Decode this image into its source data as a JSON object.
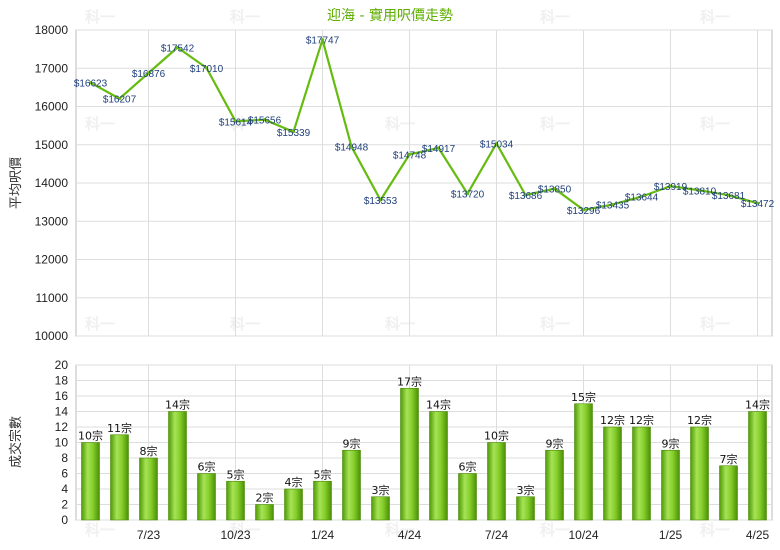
{
  "chart_data": [
    {
      "type": "line",
      "title": "迎海 - 實用呎價走勢",
      "ylabel": "平均呎價",
      "ylim": [
        10000,
        18000
      ],
      "yticks": [
        "10000",
        "11000",
        "12000",
        "13000",
        "14000",
        "15000",
        "16000",
        "17000",
        "18000"
      ],
      "xticks": [
        "7/23",
        "10/23",
        "1/24",
        "4/24",
        "7/24",
        "10/24",
        "1/25",
        "4/25"
      ],
      "grid": true,
      "color": "#66bb11",
      "values": [
        16623,
        16207,
        16876,
        17542,
        17010,
        15614,
        15656,
        15339,
        17747,
        14948,
        13553,
        14748,
        14917,
        13720,
        15034,
        13686,
        13850,
        13296,
        13435,
        13644,
        13919,
        13810,
        13681,
        13472
      ],
      "labels": [
        "$16623",
        "$16207",
        "$16876",
        "$17542",
        "$17010",
        "$15614",
        "$15656",
        "$15339",
        "$17747",
        "$14948",
        "$13553",
        "$14748",
        "$14917",
        "$13720",
        "$15034",
        "$13686",
        "$13850",
        "$13296",
        "$13435",
        "$13644",
        "$13919",
        "$13810",
        "$13681",
        "$13472"
      ]
    },
    {
      "type": "bar",
      "ylabel": "成交宗數",
      "ylim": [
        0,
        20
      ],
      "yticks": [
        "0",
        "2",
        "4",
        "6",
        "8",
        "10",
        "12",
        "14",
        "16",
        "18",
        "20"
      ],
      "xticks": [
        "7/23",
        "10/23",
        "1/24",
        "4/24",
        "7/24",
        "10/24",
        "1/25",
        "4/25"
      ],
      "grid": true,
      "color": "#77c21a",
      "values": [
        10,
        11,
        8,
        14,
        6,
        5,
        2,
        4,
        5,
        9,
        3,
        17,
        14,
        6,
        10,
        3,
        9,
        15,
        12,
        12,
        9,
        12,
        7,
        14
      ],
      "labels": [
        "10宗",
        "11宗",
        "8宗",
        "14宗",
        "6宗",
        "5宗",
        "2宗",
        "4宗",
        "5宗",
        "9宗",
        "3宗",
        "17宗",
        "14宗",
        "6宗",
        "10宗",
        "3宗",
        "9宗",
        "15宗",
        "12宗",
        "12宗",
        "9宗",
        "12宗",
        "7宗",
        "14宗"
      ]
    }
  ],
  "watermark": "科一"
}
